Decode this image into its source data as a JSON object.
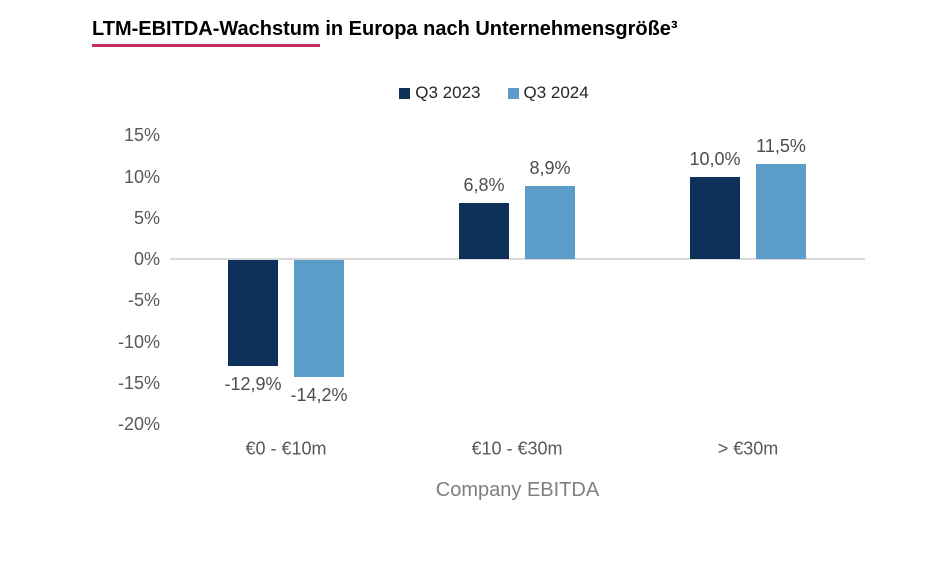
{
  "title": {
    "underlined": "LTM-EBITDA-Wachstum",
    "rest": " in Europa nach Unternehmensgröße³"
  },
  "legend": {
    "items": [
      {
        "label": "Q3 2023",
        "color": "#0E315C"
      },
      {
        "label": "Q3 2024",
        "color": "#5B9CC9"
      }
    ]
  },
  "chart_data": {
    "type": "bar",
    "title": "LTM-EBITDA-Wachstum in Europa nach Unternehmensgröße³",
    "categories": [
      "€0 - €10m",
      "€10 - €30m",
      "> €30m"
    ],
    "series": [
      {
        "name": "Q3 2023",
        "color": "#0E315C",
        "values": [
          -12.9,
          6.8,
          10.0
        ],
        "labels": [
          "-12,9%",
          "6,8%",
          "10,0%"
        ]
      },
      {
        "name": "Q3 2024",
        "color": "#5B9CC9",
        "values": [
          -14.2,
          8.9,
          11.5
        ],
        "labels": [
          "-14,2%",
          "8,9%",
          "11,5%"
        ]
      }
    ],
    "xlabel": "Company EBITDA",
    "ylabel": "",
    "ylim": [
      -20,
      15
    ],
    "ytick_step": 5,
    "yticks": [
      "15%",
      "10%",
      "5%",
      "0%",
      "-5%",
      "-10%",
      "-15%",
      "-20%"
    ],
    "grid": false,
    "legend_position": "top-center",
    "colors": {
      "title_underline": "#C0325E",
      "axis_line": "#D9D9D9",
      "axis_text": "#595959",
      "data_label_text": "#4D4D4D",
      "legend_text": "#262626"
    }
  }
}
